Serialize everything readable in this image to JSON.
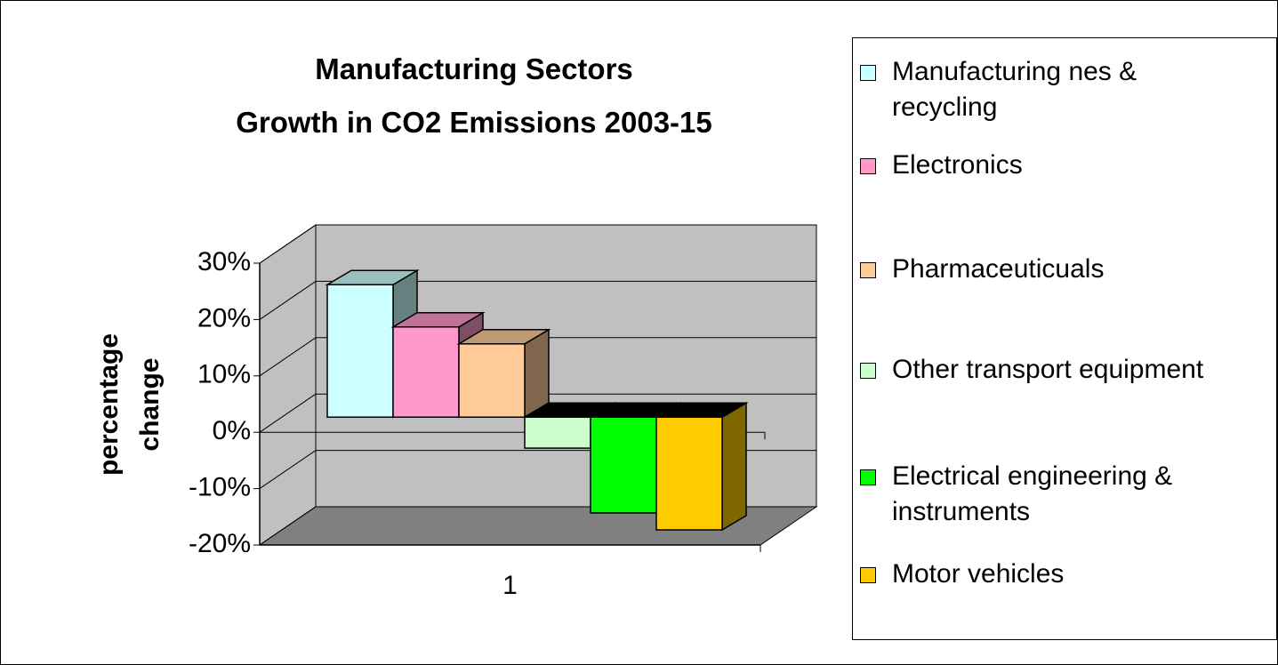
{
  "chart_data": {
    "type": "bar3d",
    "title": "Manufacturing Sectors\nGrowth in CO2 Emissions 2003-15",
    "y_label": "percentage\nchange",
    "categories": [
      "1"
    ],
    "series": [
      {
        "name": "Manufacturing nes & recycling",
        "color": "#ccffff",
        "values": [
          23.5
        ]
      },
      {
        "name": "Electronics",
        "color": "#ff99cc",
        "values": [
          16
        ]
      },
      {
        "name": "Pharmaceuticuals",
        "color": "#ffcc99",
        "values": [
          13
        ]
      },
      {
        "name": "Other transport equipment",
        "color": "#ccffcc",
        "values": [
          -5.5
        ]
      },
      {
        "name": "Electrical engineering & instruments",
        "color": "#00ff00",
        "values": [
          -17
        ]
      },
      {
        "name": "Motor vehicles",
        "color": "#ffcc00",
        "values": [
          -20
        ]
      }
    ],
    "ylim": [
      -20,
      30
    ],
    "yticks": [
      {
        "value": -20,
        "label": "-20%"
      },
      {
        "value": -10,
        "label": "-10%"
      },
      {
        "value": 0,
        "label": "0%"
      },
      {
        "value": 10,
        "label": "10%"
      },
      {
        "value": 20,
        "label": "20%"
      },
      {
        "value": 30,
        "label": "30%"
      }
    ],
    "grid": true,
    "legend": "right"
  }
}
